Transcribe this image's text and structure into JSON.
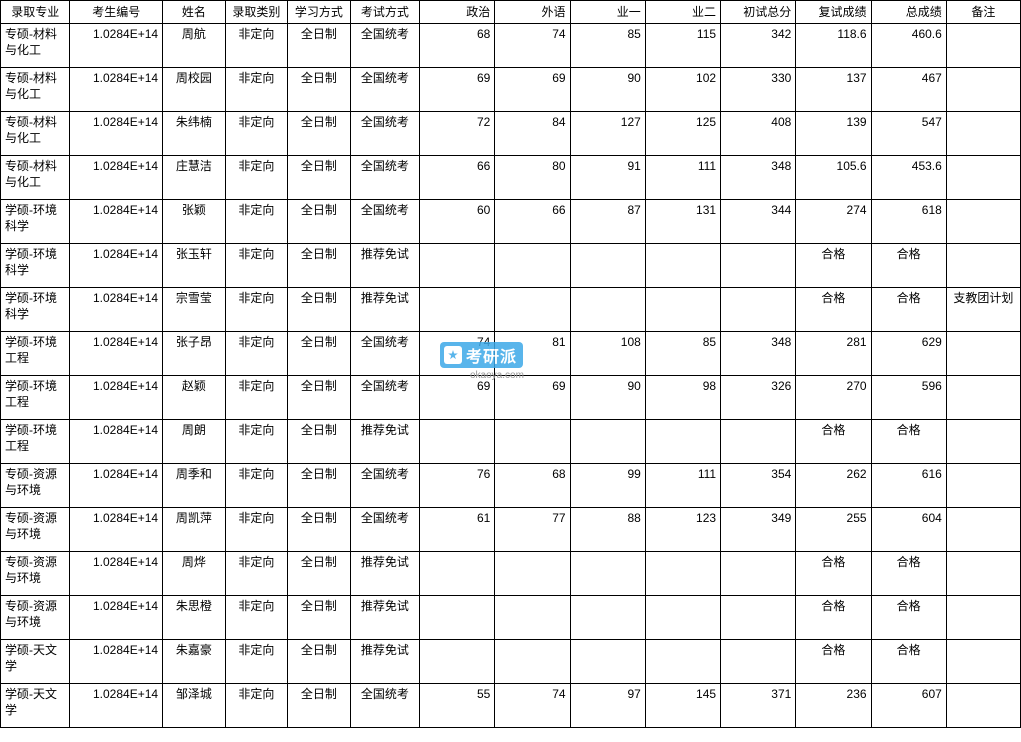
{
  "watermark": {
    "brand": "考研派",
    "url": "okaoya.com"
  },
  "table": {
    "columns": [
      "录取专业",
      "考生编号",
      "姓名",
      "录取类别",
      "学习方式",
      "考试方式",
      "政治",
      "外语",
      "业一",
      "业二",
      "初试总分",
      "复试成绩",
      "总成绩",
      "备注"
    ],
    "col_classes": [
      "col-major",
      "col-id",
      "col-name",
      "col-type",
      "col-mode",
      "col-exam",
      "col-num",
      "col-num",
      "col-num",
      "col-num",
      "col-num",
      "col-num",
      "col-num",
      "col-remark"
    ],
    "rows": [
      [
        "专硕-材料与化工",
        "1.0284E+14",
        "周航",
        "非定向",
        "全日制",
        "全国统考",
        "68",
        "74",
        "85",
        "115",
        "342",
        "118.6",
        "460.6",
        ""
      ],
      [
        "专硕-材料与化工",
        "1.0284E+14",
        "周校园",
        "非定向",
        "全日制",
        "全国统考",
        "69",
        "69",
        "90",
        "102",
        "330",
        "137",
        "467",
        ""
      ],
      [
        "专硕-材料与化工",
        "1.0284E+14",
        "朱纬楠",
        "非定向",
        "全日制",
        "全国统考",
        "72",
        "84",
        "127",
        "125",
        "408",
        "139",
        "547",
        ""
      ],
      [
        "专硕-材料与化工",
        "1.0284E+14",
        "庄慧洁",
        "非定向",
        "全日制",
        "全国统考",
        "66",
        "80",
        "91",
        "111",
        "348",
        "105.6",
        "453.6",
        ""
      ],
      [
        "学硕-环境科学",
        "1.0284E+14",
        "张颖",
        "非定向",
        "全日制",
        "全国统考",
        "60",
        "66",
        "87",
        "131",
        "344",
        "274",
        "618",
        ""
      ],
      [
        "学硕-环境科学",
        "1.0284E+14",
        "张玉轩",
        "非定向",
        "全日制",
        "推荐免试",
        "",
        "",
        "",
        "",
        "",
        "合格",
        "合格",
        ""
      ],
      [
        "学硕-环境科学",
        "1.0284E+14",
        "宗雪莹",
        "非定向",
        "全日制",
        "推荐免试",
        "",
        "",
        "",
        "",
        "",
        "合格",
        "合格",
        "支教团计划"
      ],
      [
        "学硕-环境工程",
        "1.0284E+14",
        "张子昂",
        "非定向",
        "全日制",
        "全国统考",
        "74",
        "81",
        "108",
        "85",
        "348",
        "281",
        "629",
        ""
      ],
      [
        "学硕-环境工程",
        "1.0284E+14",
        "赵颖",
        "非定向",
        "全日制",
        "全国统考",
        "69",
        "69",
        "90",
        "98",
        "326",
        "270",
        "596",
        ""
      ],
      [
        "学硕-环境工程",
        "1.0284E+14",
        "周朗",
        "非定向",
        "全日制",
        "推荐免试",
        "",
        "",
        "",
        "",
        "",
        "合格",
        "合格",
        ""
      ],
      [
        "专硕-资源与环境",
        "1.0284E+14",
        "周季和",
        "非定向",
        "全日制",
        "全国统考",
        "76",
        "68",
        "99",
        "111",
        "354",
        "262",
        "616",
        ""
      ],
      [
        "专硕-资源与环境",
        "1.0284E+14",
        "周凯萍",
        "非定向",
        "全日制",
        "全国统考",
        "61",
        "77",
        "88",
        "123",
        "349",
        "255",
        "604",
        ""
      ],
      [
        "专硕-资源与环境",
        "1.0284E+14",
        "周烨",
        "非定向",
        "全日制",
        "推荐免试",
        "",
        "",
        "",
        "",
        "",
        "合格",
        "合格",
        ""
      ],
      [
        "专硕-资源与环境",
        "1.0284E+14",
        "朱思橙",
        "非定向",
        "全日制",
        "推荐免试",
        "",
        "",
        "",
        "",
        "",
        "合格",
        "合格",
        ""
      ],
      [
        "学硕-天文学",
        "1.0284E+14",
        "朱嘉豪",
        "非定向",
        "全日制",
        "推荐免试",
        "",
        "",
        "",
        "",
        "",
        "合格",
        "合格",
        ""
      ],
      [
        "学硕-天文学",
        "1.0284E+14",
        "邹泽城",
        "非定向",
        "全日制",
        "全国统考",
        "55",
        "74",
        "97",
        "145",
        "371",
        "236",
        "607",
        ""
      ]
    ],
    "qualified_centered_cols": [
      11,
      12
    ],
    "background_color": "#ffffff",
    "border_color": "#000000",
    "font_size": 12
  }
}
